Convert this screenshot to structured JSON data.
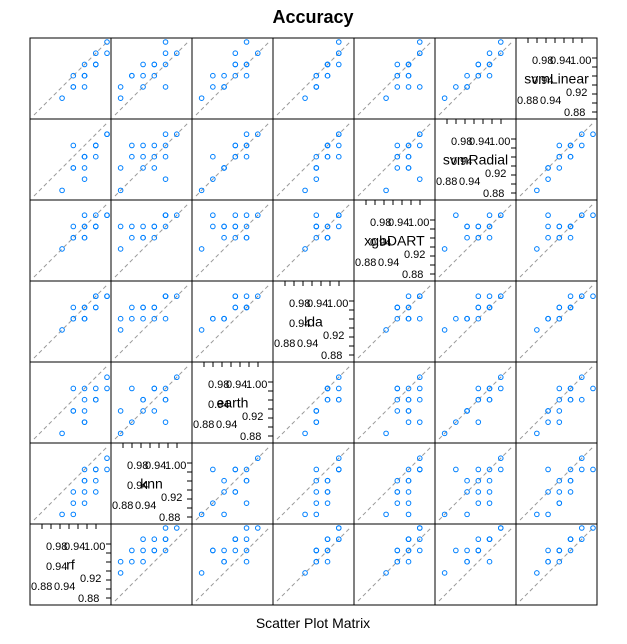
{
  "chart": {
    "title": "Accuracy",
    "xlabel": "Scatter Plot Matrix",
    "colors": {
      "points": "#0080ff",
      "diagonal_line": "#999999",
      "frame": "#000000"
    }
  },
  "chart_data": {
    "type": "scatter",
    "subtype": "scatter-plot-matrix",
    "variables": [
      "rf",
      "knn",
      "earth",
      "lda",
      "xgbDART",
      "svmRadial",
      "svmLinear"
    ],
    "axis_range": [
      0.87,
      1.0
    ],
    "tick_labels_low": [
      "0.88",
      "0.94",
      "0.92",
      "0.88"
    ],
    "tick_labels_high": [
      "0.98",
      "0.94",
      "1.00"
    ],
    "reference_line": "y = x (dashed)",
    "observations": [
      {
        "rf": 0.94,
        "knn": 0.88,
        "earth": 0.92,
        "lda": 0.94,
        "xgbDART": 0.96,
        "svmRadial": 0.92,
        "svmLinear": 0.92
      },
      {
        "rf": 0.96,
        "knn": 0.92,
        "earth": 0.94,
        "lda": 0.96,
        "xgbDART": 0.94,
        "svmRadial": 0.94,
        "svmLinear": 0.94
      },
      {
        "rf": 0.98,
        "knn": 0.94,
        "earth": 0.96,
        "lda": 0.96,
        "xgbDART": 0.96,
        "svmRadial": 0.96,
        "svmLinear": 0.96
      },
      {
        "rf": 0.96,
        "knn": 0.96,
        "earth": 0.9,
        "lda": 0.94,
        "xgbDART": 0.98,
        "svmRadial": 0.9,
        "svmLinear": 0.92
      },
      {
        "rf": 0.98,
        "knn": 0.96,
        "earth": 0.94,
        "lda": 0.98,
        "xgbDART": 0.96,
        "svmRadial": 0.94,
        "svmLinear": 0.96
      },
      {
        "rf": 0.94,
        "knn": 0.9,
        "earth": 0.96,
        "lda": 0.96,
        "xgbDART": 0.94,
        "svmRadial": 0.96,
        "svmLinear": 0.94
      },
      {
        "rf": 1.0,
        "knn": 0.98,
        "earth": 0.98,
        "lda": 0.98,
        "xgbDART": 0.98,
        "svmRadial": 0.98,
        "svmLinear": 0.98
      },
      {
        "rf": 0.96,
        "knn": 0.94,
        "earth": 0.92,
        "lda": 0.94,
        "xgbDART": 0.96,
        "svmRadial": 0.92,
        "svmLinear": 0.94
      },
      {
        "rf": 0.98,
        "knn": 0.92,
        "earth": 0.94,
        "lda": 0.96,
        "xgbDART": 0.96,
        "svmRadial": 0.96,
        "svmLinear": 0.96
      },
      {
        "rf": 0.92,
        "knn": 0.88,
        "earth": 0.88,
        "lda": 0.92,
        "xgbDART": 0.92,
        "svmRadial": 0.88,
        "svmLinear": 0.9
      },
      {
        "rf": 0.96,
        "knn": 0.94,
        "earth": 0.96,
        "lda": 0.96,
        "xgbDART": 0.94,
        "svmRadial": 0.94,
        "svmLinear": 0.96
      },
      {
        "rf": 0.98,
        "knn": 0.96,
        "earth": 0.94,
        "lda": 0.98,
        "xgbDART": 0.98,
        "svmRadial": 0.96,
        "svmLinear": 0.98
      },
      {
        "rf": 0.94,
        "knn": 0.92,
        "earth": 0.92,
        "lda": 0.94,
        "xgbDART": 0.94,
        "svmRadial": 0.92,
        "svmLinear": 0.92
      },
      {
        "rf": 1.0,
        "knn": 0.96,
        "earth": 0.96,
        "lda": 0.98,
        "xgbDART": 0.98,
        "svmRadial": 0.98,
        "svmLinear": 1.0
      },
      {
        "rf": 0.96,
        "knn": 0.9,
        "earth": 0.9,
        "lda": 0.94,
        "xgbDART": 0.96,
        "svmRadial": 0.94,
        "svmLinear": 0.94
      }
    ]
  }
}
